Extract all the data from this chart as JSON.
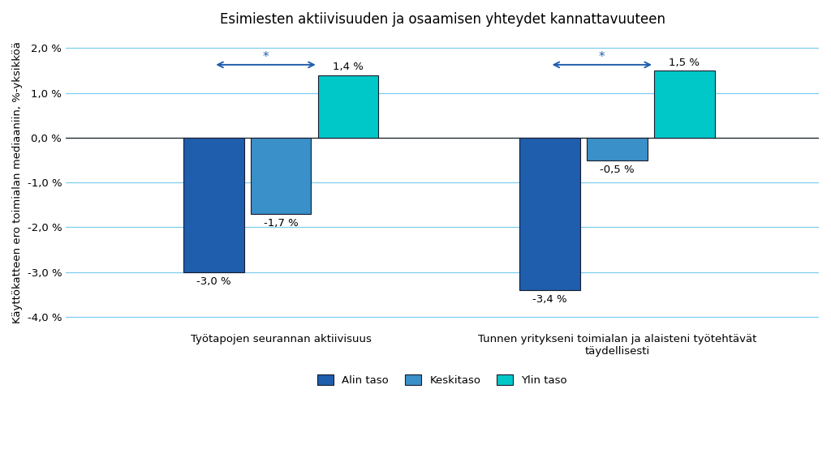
{
  "title": "Esimiesten aktiivisuuden ja osaamisen yhteydet kannattavuuteen",
  "ylabel": "Käyttökatteen ero toimialan mediaaniin, %-yksikköä",
  "groups": [
    "Työtapojen seurannan aktiivisuus",
    "Tunnen yritykseni toimialan ja alaisteni työtehtävät\ntäydellisesti"
  ],
  "series": [
    "Alin taso",
    "Keskitaso",
    "Ylin taso"
  ],
  "values": [
    [
      -3.0,
      -1.7,
      1.4
    ],
    [
      -3.4,
      -0.5,
      1.5
    ]
  ],
  "labels": [
    [
      "-3,0 %",
      "-1,7 %",
      "1,4 %"
    ],
    [
      "-3,4 %",
      "-0,5 %",
      "1,5 %"
    ]
  ],
  "colors": [
    "#1F5EAD",
    "#3A90C8",
    "#00C8C8"
  ],
  "bar_colors": [
    [
      "#1F5EAD",
      "#3A90C8",
      "#00C8C8"
    ],
    [
      "#1F5EAD",
      "#3A90C8",
      "#00C8C8"
    ]
  ],
  "ylim": [
    -4.3,
    2.3
  ],
  "yticks": [
    -4.0,
    -3.0,
    -2.0,
    -1.0,
    0.0,
    1.0,
    2.0
  ],
  "ytick_labels": [
    "-4,0 %",
    "-3,0 %",
    "-2,0 %",
    "-1,0 %",
    "0,0 %",
    "1,0 %",
    "2,0 %"
  ],
  "arrow_color": "#1F5EAD",
  "background_color": "#FFFFFF",
  "grid_color": "#7DCEEE",
  "title_fontsize": 12,
  "axis_fontsize": 9.5,
  "label_fontsize": 9.5,
  "legend_fontsize": 9.5,
  "group_centers": [
    0.32,
    0.82
  ],
  "bar_width": 0.09,
  "bar_gap": 0.01,
  "xlim": [
    0.0,
    1.12
  ]
}
